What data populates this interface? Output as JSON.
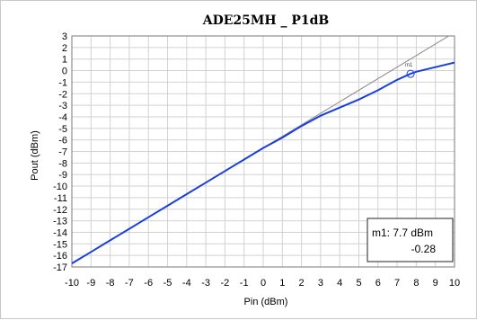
{
  "chart_data": {
    "type": "line",
    "title": "ADE25MH _ P1dB",
    "xlabel": "Pin (dBm)",
    "ylabel": "Pout (dBm)",
    "xlim": [
      -10,
      10
    ],
    "ylim": [
      -17,
      3
    ],
    "x_ticks": [
      "-10",
      "-9",
      "-8",
      "-7",
      "-6",
      "-5",
      "-4",
      "-3",
      "-2",
      "-1",
      "0",
      "1",
      "2",
      "3",
      "4",
      "5",
      "6",
      "7",
      "8",
      "9",
      "10"
    ],
    "y_ticks": [
      "3",
      "2",
      "1",
      "0",
      "-1",
      "-2",
      "-3",
      "-4",
      "-5",
      "-6",
      "-7",
      "-8",
      "-9",
      "-10",
      "-11",
      "-12",
      "-13",
      "-14",
      "-15",
      "-16",
      "-17"
    ],
    "grid": true,
    "series": [
      {
        "color": "#1a3fe0",
        "x": [
          -10,
          -9,
          -8,
          -7,
          -6,
          -5,
          -4,
          -3,
          -2,
          -1,
          0,
          1,
          2,
          3,
          4,
          5,
          6,
          7,
          7.7,
          8,
          9,
          10
        ],
        "y": [
          -16.7,
          -15.7,
          -14.7,
          -13.7,
          -12.7,
          -11.7,
          -10.7,
          -9.7,
          -8.7,
          -7.7,
          -6.7,
          -5.8,
          -4.8,
          -3.9,
          -3.2,
          -2.5,
          -1.7,
          -0.8,
          -0.28,
          -0.1,
          0.3,
          0.7
        ]
      },
      {
        "color": "#8a8a8a",
        "x": [
          -10,
          10
        ],
        "y": [
          -16.7,
          3.3
        ]
      }
    ],
    "marker": {
      "name": "m1",
      "x": 7.7,
      "y": -0.28,
      "readout_line1": "m1: 7.7 dBm",
      "readout_line2": "-0.28"
    }
  }
}
